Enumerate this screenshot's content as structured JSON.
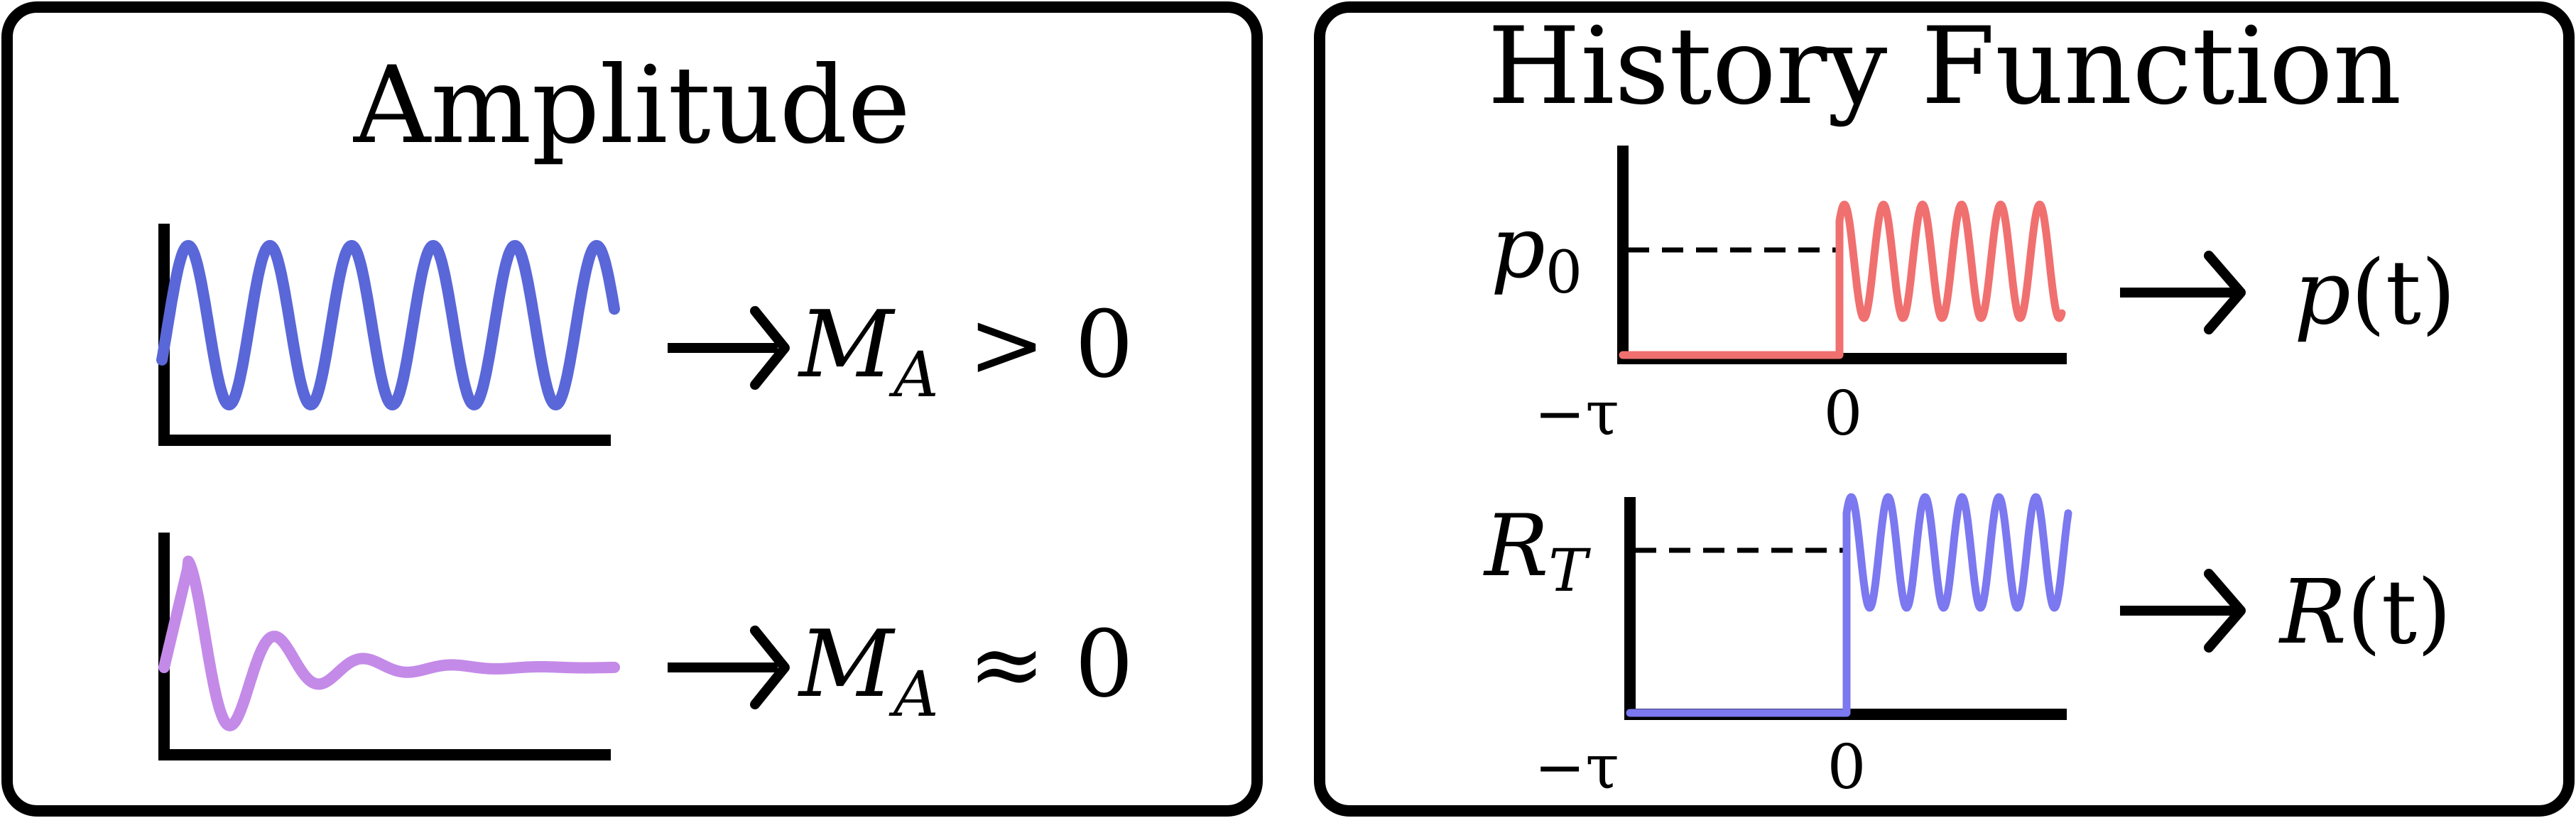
{
  "left_panel": {
    "title": "Amplitude",
    "rows": [
      {
        "label_symbol": "M",
        "label_subscript": "A",
        "label_relation": " > 0",
        "wave_color": "#5a67d8"
      },
      {
        "label_symbol": "M",
        "label_subscript": "A",
        "label_relation": " ≈ 0",
        "wave_color": "#c48ae8"
      }
    ]
  },
  "right_panel": {
    "title": "History Function",
    "rows": [
      {
        "level_symbol": "p",
        "level_subscript": "0",
        "tick_left": "−τ",
        "tick_zero": "0",
        "output_symbol": "p",
        "output_arg": "(t)",
        "curve_color": "#f07070"
      },
      {
        "level_symbol": "R",
        "level_subscript": "T",
        "tick_left": "−τ",
        "tick_zero": "0",
        "output_symbol": "R",
        "output_arg": "(t)",
        "curve_color": "#7b78f0"
      }
    ]
  }
}
